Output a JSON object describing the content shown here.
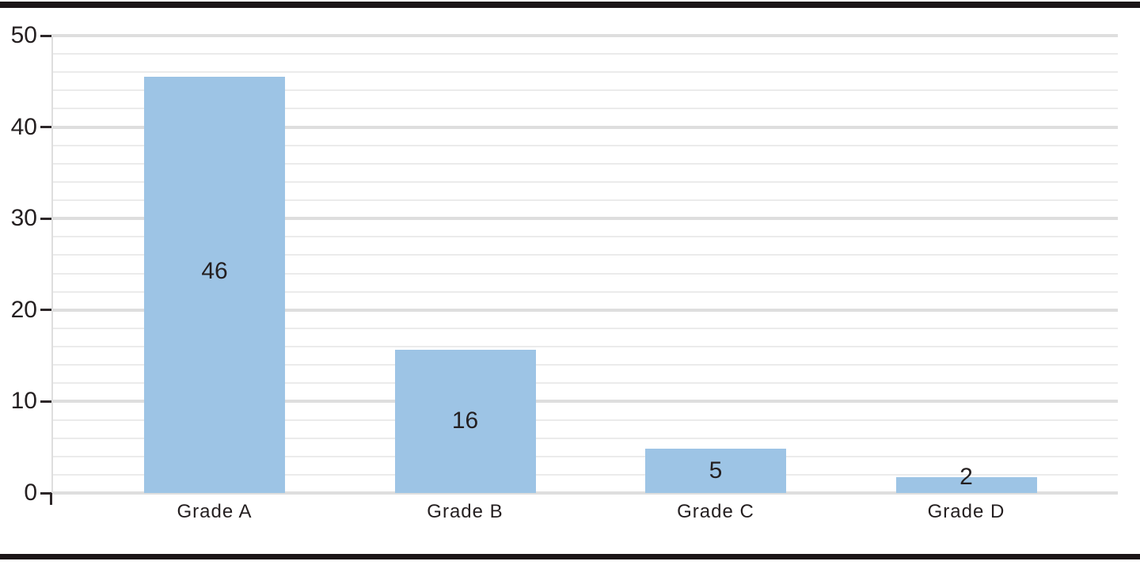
{
  "page": {
    "background": "#ffffff",
    "top_rule": true,
    "bottom_rule": true
  },
  "chart_data": {
    "type": "bar",
    "title": "",
    "xlabel": "",
    "ylabel": "",
    "categories": [
      "Grade A",
      "Grade B",
      "Grade C",
      "Grade D"
    ],
    "values": [
      46,
      16,
      5,
      2
    ],
    "bar_labels": [
      "46",
      "16",
      "5",
      "2"
    ],
    "drawn_values": [
      45.5,
      15.7,
      4.85,
      1.73
    ],
    "label_anchor_values": [
      24.2,
      7.85,
      2.43,
      1.73
    ],
    "ylim": [
      0,
      50
    ],
    "y_major_ticks": [
      50,
      40,
      30,
      20,
      10,
      0
    ],
    "y_minor_step": 2,
    "grid": {
      "horizontal_major": true,
      "horizontal_minor": true,
      "vertical": false
    },
    "legend": "none",
    "bar_label_position": "inside-center, overflows top when bar is short",
    "colors": {
      "bar": "#9dc4e5",
      "grid_minor": "#ebebeb",
      "grid_major": "#dedede",
      "axis_line": "#dedede",
      "tick": "#2c2628",
      "text": "#241f20",
      "rule": "#1b1517",
      "background": "#ffffff"
    }
  }
}
